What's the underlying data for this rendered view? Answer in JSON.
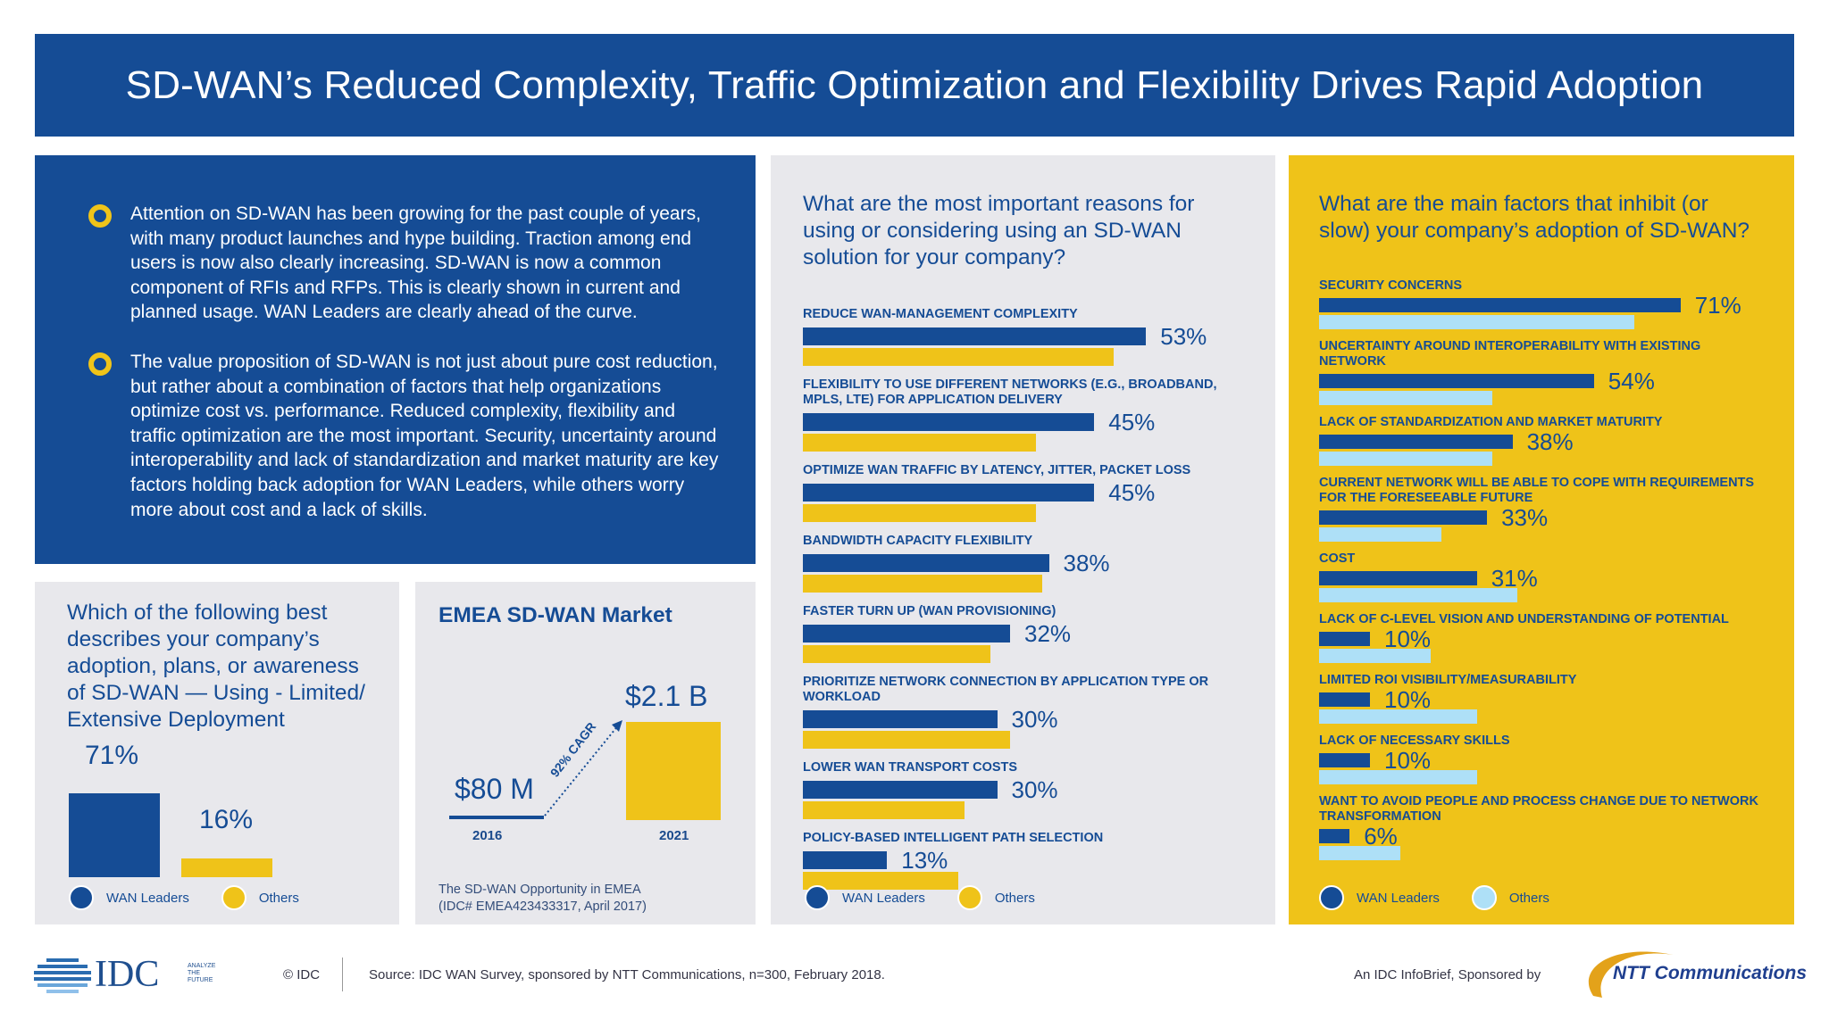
{
  "title": "SD-WAN’s Reduced Complexity, Traffic Optimization and Flexibility Drives Rapid Adoption",
  "intro": {
    "bullets": [
      "Attention on SD-WAN has been growing for the past couple of years, with many product launches and hype building. Traction among end users is now also clearly increasing. SD-WAN is now a common component of RFIs and RFPs. This is clearly shown in current and planned usage. WAN Leaders are clearly ahead of the curve.",
      "The value proposition of SD-WAN is not just about pure cost reduction, but rather about a combination of factors that help organizations optimize cost vs. performance. Reduced complexity, flexibility and traffic optimization are the most important. Security, uncertainty around interoperability and lack of standardization and market maturity are key factors holding back adoption for WAN Leaders, while others worry more about cost and a lack of skills."
    ]
  },
  "colors": {
    "navy": "#154c95",
    "yellow": "#efc319",
    "light_blue": "#aee0f7",
    "panel_gray": "#e8e8ec"
  },
  "chart_data": [
    {
      "type": "bar",
      "title": "Which of the following best describes your company’s adoption, plans, or awareness of SD-WAN — Using - Limited/ Extensive Deployment",
      "categories": [
        "WAN Leaders",
        "Others"
      ],
      "values": [
        71,
        16
      ],
      "labels": [
        "71%",
        "16%"
      ],
      "legend": [
        "WAN Leaders",
        "Others"
      ],
      "colors": [
        "#154c95",
        "#efc319"
      ]
    },
    {
      "type": "bar",
      "title": "EMEA SD-WAN Market",
      "categories": [
        "2016",
        "2021"
      ],
      "values": [
        "$80 M",
        "$2.1 B"
      ],
      "annotation": "92% CAGR",
      "source": [
        "The SD-WAN Opportunity in EMEA",
        "(IDC# EMEA423433317, April 2017)"
      ]
    },
    {
      "type": "bar",
      "orientation": "horizontal",
      "title": "What are the most important reasons for using or considering using an SD-WAN solution for your company?",
      "categories": [
        "REDUCE WAN-MANAGEMENT COMPLEXITY",
        "FLEXIBILITY TO USE DIFFERENT NETWORKS (E.G., BROADBAND, MPLS, LTE) FOR APPLICATION DELIVERY",
        "OPTIMIZE WAN TRAFFIC BY LATENCY, JITTER, PACKET LOSS",
        "BANDWIDTH CAPACITY FLEXIBILITY",
        "FASTER TURN UP (WAN PROVISIONING)",
        "PRIORITIZE NETWORK CONNECTION BY APPLICATION TYPE OR WORKLOAD",
        "LOWER WAN TRANSPORT COSTS",
        "POLICY-BASED INTELLIGENT PATH SELECTION"
      ],
      "series": [
        {
          "name": "WAN Leaders",
          "values": [
            53,
            45,
            45,
            38,
            32,
            30,
            30,
            13
          ],
          "labels": [
            "53%",
            "45%",
            "45%",
            "38%",
            "32%",
            "30%",
            "30%",
            "13%"
          ],
          "color": "#154c95"
        },
        {
          "name": "Others",
          "values": [
            48,
            36,
            36,
            37,
            29,
            32,
            25,
            24
          ],
          "color": "#efc319"
        }
      ],
      "legend": "bottom-left"
    },
    {
      "type": "bar",
      "orientation": "horizontal",
      "title": "What are the main factors that inhibit (or slow) your company’s adoption of SD-WAN?",
      "categories": [
        "SECURITY CONCERNS",
        "UNCERTAINTY AROUND INTEROPERABILITY WITH EXISTING NETWORK",
        "LACK OF STANDARDIZATION AND MARKET MATURITY",
        "CURRENT NETWORK WILL BE ABLE TO COPE WITH REQUIREMENTS FOR THE FORESEEABLE FUTURE",
        "COST",
        "LACK OF C-LEVEL VISION AND UNDERSTANDING OF POTENTIAL",
        "LIMITED ROI VISIBILITY/MEASURABILITY",
        "LACK OF NECESSARY SKILLS",
        "WANT TO AVOID PEOPLE AND PROCESS CHANGE DUE TO NETWORK TRANSFORMATION"
      ],
      "series": [
        {
          "name": "WAN Leaders",
          "values": [
            71,
            54,
            38,
            33,
            31,
            10,
            10,
            10,
            6
          ],
          "labels": [
            "71%",
            "54%",
            "38%",
            "33%",
            "31%",
            "10%",
            "10%",
            "10%",
            "6%"
          ],
          "color": "#154c95"
        },
        {
          "name": "Others",
          "values": [
            62,
            34,
            34,
            24,
            39,
            22,
            31,
            31,
            16
          ],
          "color": "#aee0f7"
        }
      ],
      "legend": "bottom-left"
    }
  ],
  "footer": {
    "copyright": "© IDC",
    "source": "Source: IDC WAN Survey, sponsored by NTT Communications, n=300, February 2018.",
    "sponsor_text": "An IDC InfoBrief, Sponsored by",
    "idc_logo": "IDC",
    "idc_tagline": "ANALYZE THE FUTURE",
    "ntt_logo": "NTT Communications"
  }
}
